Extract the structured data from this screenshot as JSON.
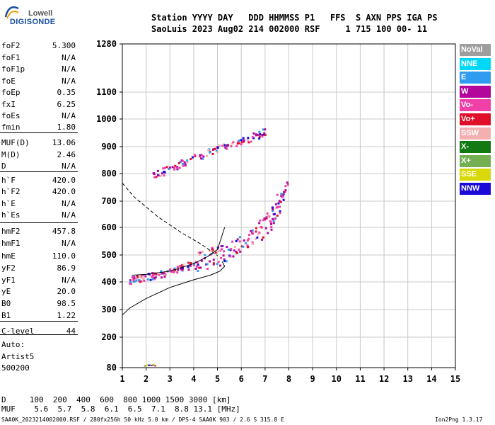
{
  "logo": {
    "top": "Lowell",
    "bottom": "DIGISONDE"
  },
  "header": {
    "row1": "Station YYYY DAY   DDD HHMMSS P1   FFS  S AXN PPS IGA PS",
    "row2": "SaoLuis 2023 Aug02 214 002000 RSF     1 715 100 00- 11"
  },
  "params": [
    {
      "name": "foF2",
      "value": "5.300"
    },
    {
      "name": "foF1",
      "value": "N/A"
    },
    {
      "name": "foF1p",
      "value": "N/A"
    },
    {
      "name": "foE",
      "value": "N/A"
    },
    {
      "name": "foEp",
      "value": "0.35"
    },
    {
      "name": "fxI",
      "value": "6.25"
    },
    {
      "name": "foEs",
      "value": "N/A"
    },
    {
      "name": "fmin",
      "value": "1.80"
    },
    {
      "name": "MUF(D)",
      "value": "13.06"
    },
    {
      "name": "M(D)",
      "value": "2.46"
    },
    {
      "name": "D",
      "value": "N/A"
    },
    {
      "name": "h`F",
      "value": "420.0"
    },
    {
      "name": "h`F2",
      "value": "420.0"
    },
    {
      "name": "h`E",
      "value": "N/A"
    },
    {
      "name": "h`Es",
      "value": "N/A"
    },
    {
      "name": "hmF2",
      "value": "457.8"
    },
    {
      "name": "hmF1",
      "value": "N/A"
    },
    {
      "name": "hmE",
      "value": "110.0"
    },
    {
      "name": "yF2",
      "value": "86.9"
    },
    {
      "name": "yF1",
      "value": "N/A"
    },
    {
      "name": "yE",
      "value": "20.0"
    },
    {
      "name": "B0",
      "value": "98.5"
    },
    {
      "name": "B1",
      "value": "1.22"
    },
    {
      "name": "C-level",
      "value": "44"
    }
  ],
  "auto": {
    "label": "Auto:",
    "artist": "Artist5",
    "version": "500200"
  },
  "legend": [
    {
      "label": "NoVal",
      "color": "#9e9e9e"
    },
    {
      "label": "NNE",
      "color": "#00d8f8"
    },
    {
      "label": "E",
      "color": "#2f9cf0"
    },
    {
      "label": "W",
      "color": "#b3069b"
    },
    {
      "label": "Vo-",
      "color": "#f040a8"
    },
    {
      "label": "Vo+",
      "color": "#e0102a"
    },
    {
      "label": "SSW",
      "color": "#f4b0b0"
    },
    {
      "label": "X-",
      "color": "#137a13"
    },
    {
      "label": "X+",
      "color": "#74b052"
    },
    {
      "label": "SSE",
      "color": "#d8d80a"
    },
    {
      "label": "NNW",
      "color": "#1c0ad8"
    }
  ],
  "footer": {
    "row1": "D     100  200  400  600  800 1000 1500 3000 [km]",
    "row2": "MUF    5.6  5.7  5.8  6.1  6.5  7.1  8.8 13.1 [MHz]",
    "file": "SAA0K_2023214002000.RSF / 280fx256h 50 kHz 5.0 km / DPS-4 SAA0K 903 / 2.6 S 315.8 E",
    "version": "Ion2Png 1.3.17"
  },
  "chart_data": {
    "type": "scatter",
    "title": "",
    "xlabel": "",
    "ylabel": "",
    "xlim": [
      1,
      15
    ],
    "ylim": [
      80,
      1280
    ],
    "x_ticks": [
      "1",
      "2",
      "3",
      "4",
      "5",
      "6",
      "7",
      "8",
      "9",
      "10",
      "11",
      "12",
      "13",
      "14",
      "15"
    ],
    "y_ticks": [
      "80",
      "200",
      "300",
      "400",
      "500",
      "600",
      "700",
      "800",
      "900",
      "1000",
      "1100",
      "1280"
    ],
    "grid": true,
    "series": [
      {
        "kind": "trace",
        "points": [
          [
            1.3,
            408
          ],
          [
            1.6,
            414
          ],
          [
            2.0,
            420
          ],
          [
            2.5,
            428
          ],
          [
            3.0,
            440
          ],
          [
            3.5,
            455
          ],
          [
            4.0,
            470
          ],
          [
            4.5,
            485
          ],
          [
            5.0,
            500
          ],
          [
            5.5,
            518
          ],
          [
            6.0,
            540
          ],
          [
            6.5,
            570
          ],
          [
            7.0,
            610
          ],
          [
            7.3,
            650
          ],
          [
            7.6,
            700
          ],
          [
            7.9,
            760
          ]
        ]
      },
      {
        "kind": "trace",
        "points": [
          [
            2.3,
            795
          ],
          [
            2.8,
            815
          ],
          [
            3.5,
            840
          ],
          [
            4.3,
            870
          ],
          [
            5.0,
            895
          ],
          [
            5.8,
            915
          ],
          [
            6.4,
            935
          ],
          [
            7.0,
            955
          ]
        ]
      },
      {
        "kind": "profile",
        "points": [
          [
            1.0,
            280
          ],
          [
            1.3,
            305
          ],
          [
            2.0,
            340
          ],
          [
            3.0,
            380
          ],
          [
            4.0,
            408
          ],
          [
            4.7,
            425
          ],
          [
            5.1,
            440
          ],
          [
            5.3,
            458
          ],
          [
            5.2,
            475
          ]
        ]
      },
      {
        "kind": "dashed",
        "points": [
          [
            1.0,
            765
          ],
          [
            1.5,
            715
          ],
          [
            2.5,
            640
          ],
          [
            3.5,
            580
          ],
          [
            4.3,
            540
          ],
          [
            4.8,
            510
          ],
          [
            5.0,
            498
          ]
        ]
      },
      {
        "kind": "trace-fit",
        "points": [
          [
            1.4,
            425
          ],
          [
            2.0,
            428
          ],
          [
            3.0,
            440
          ],
          [
            4.0,
            468
          ],
          [
            4.6,
            495
          ],
          [
            5.0,
            520
          ],
          [
            5.3,
            600
          ]
        ]
      }
    ]
  }
}
